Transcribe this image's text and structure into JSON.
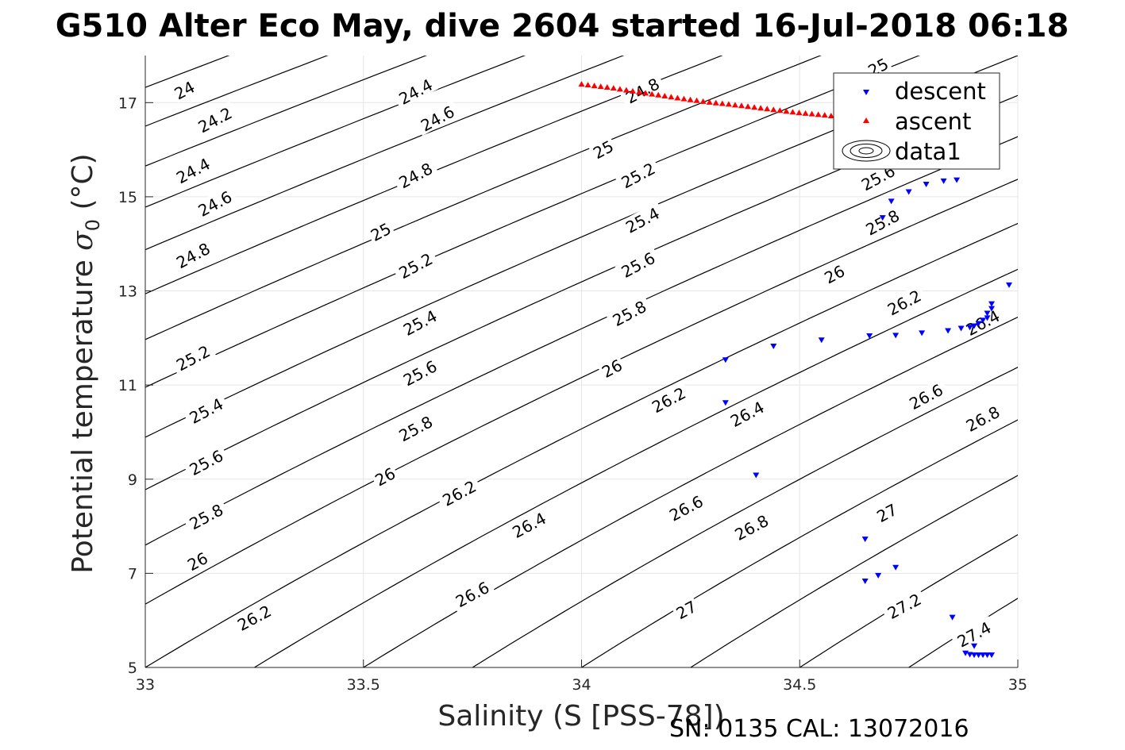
{
  "title": "G510 Alter Eco May, dive 2604 started 16-Jul-2018 06:18",
  "footer": "SN: 0135  CAL: 13072016",
  "chart_data": {
    "type": "scatter",
    "title": "G510 Alter Eco May, dive 2604 started 16-Jul-2018 06:18",
    "xlabel": "Salinity (S [PSS-78])",
    "ylabel": "Potential temperature σ₀ (°C)",
    "xlim": [
      33,
      35
    ],
    "ylim": [
      5,
      18
    ],
    "xticks": [
      33,
      33.5,
      34,
      34.5,
      35
    ],
    "xtick_labels": [
      "33",
      "33.5",
      "34",
      "34.5",
      "35"
    ],
    "yticks": [
      5,
      7,
      9,
      11,
      13,
      15,
      17
    ],
    "ytick_labels": [
      "5",
      "7",
      "9",
      "11",
      "13",
      "15",
      "17"
    ],
    "grid": true,
    "legend_position": "top-right",
    "series": [
      {
        "name": "descent",
        "marker": "triangle-down",
        "color": "#0000ff",
        "points": [
          [
            34.86,
            15.35
          ],
          [
            34.83,
            15.33
          ],
          [
            34.79,
            15.26
          ],
          [
            34.75,
            15.1
          ],
          [
            34.71,
            14.9
          ],
          [
            34.69,
            14.55
          ],
          [
            34.98,
            13.12
          ],
          [
            34.94,
            12.72
          ],
          [
            34.94,
            12.62
          ],
          [
            34.93,
            12.52
          ],
          [
            34.93,
            12.42
          ],
          [
            34.92,
            12.37
          ],
          [
            34.91,
            12.3
          ],
          [
            34.9,
            12.25
          ],
          [
            34.89,
            12.22
          ],
          [
            34.87,
            12.2
          ],
          [
            34.84,
            12.15
          ],
          [
            34.78,
            12.1
          ],
          [
            34.72,
            12.05
          ],
          [
            34.66,
            12.04
          ],
          [
            34.55,
            11.95
          ],
          [
            34.44,
            11.82
          ],
          [
            34.33,
            11.53
          ],
          [
            34.33,
            10.62
          ],
          [
            34.4,
            9.08
          ],
          [
            34.65,
            7.72
          ],
          [
            34.72,
            7.12
          ],
          [
            34.68,
            6.95
          ],
          [
            34.65,
            6.83
          ],
          [
            34.85,
            6.06
          ],
          [
            34.9,
            5.45
          ],
          [
            34.88,
            5.3
          ],
          [
            34.89,
            5.27
          ],
          [
            34.9,
            5.26
          ],
          [
            34.91,
            5.26
          ],
          [
            34.92,
            5.26
          ],
          [
            34.93,
            5.26
          ],
          [
            34.94,
            5.26
          ]
        ]
      },
      {
        "name": "ascent",
        "marker": "triangle-up",
        "color": "#ff0000",
        "points": [
          [
            34.0,
            17.4
          ],
          [
            34.07,
            17.32
          ],
          [
            34.14,
            17.22
          ],
          [
            34.21,
            17.12
          ],
          [
            34.28,
            17.03
          ],
          [
            34.35,
            16.96
          ],
          [
            34.42,
            16.88
          ],
          [
            34.49,
            16.8
          ],
          [
            34.56,
            16.74
          ],
          [
            34.63,
            16.66
          ],
          [
            34.7,
            16.6
          ],
          [
            34.77,
            16.54
          ],
          [
            34.84,
            16.5
          ],
          [
            34.88,
            16.47
          ]
        ]
      },
      {
        "name": "data1",
        "type": "contour",
        "description_levels": [
          24,
          24.2,
          24.4,
          24.6,
          24.8,
          25,
          25.2,
          25.4,
          25.6,
          25.8,
          26,
          26.2,
          26.4,
          26.6,
          26.8,
          27,
          27.2,
          27.4
        ]
      }
    ],
    "contour_labels": [
      {
        "text": "24",
        "x": 33.09,
        "y": 17.26
      },
      {
        "text": "24.2",
        "x": 33.16,
        "y": 16.63
      },
      {
        "text": "24.4",
        "x": 33.11,
        "y": 15.55
      },
      {
        "text": "24.6",
        "x": 33.16,
        "y": 14.85
      },
      {
        "text": "24.8",
        "x": 33.11,
        "y": 13.75
      },
      {
        "text": "25.2",
        "x": 33.11,
        "y": 11.57
      },
      {
        "text": "25.4",
        "x": 33.14,
        "y": 10.45
      },
      {
        "text": "25.6",
        "x": 33.14,
        "y": 9.35
      },
      {
        "text": "25.8",
        "x": 33.14,
        "y": 8.2
      },
      {
        "text": "26",
        "x": 33.12,
        "y": 7.25
      },
      {
        "text": "26.2",
        "x": 33.25,
        "y": 6.05
      },
      {
        "text": "24.4",
        "x": 33.62,
        "y": 17.23
      },
      {
        "text": "24.6",
        "x": 33.67,
        "y": 16.66
      },
      {
        "text": "24.8",
        "x": 33.62,
        "y": 15.45
      },
      {
        "text": "25",
        "x": 33.54,
        "y": 14.25
      },
      {
        "text": "25.2",
        "x": 33.62,
        "y": 13.53
      },
      {
        "text": "25.4",
        "x": 33.63,
        "y": 12.32
      },
      {
        "text": "25.6",
        "x": 33.63,
        "y": 11.25
      },
      {
        "text": "25.8",
        "x": 33.62,
        "y": 10.07
      },
      {
        "text": "26",
        "x": 33.55,
        "y": 9.05
      },
      {
        "text": "26.2",
        "x": 33.72,
        "y": 8.7
      },
      {
        "text": "26.4",
        "x": 33.88,
        "y": 8.02
      },
      {
        "text": "26.6",
        "x": 33.75,
        "y": 6.55
      },
      {
        "text": "24.8",
        "x": 34.14,
        "y": 17.25
      },
      {
        "text": "25",
        "x": 34.05,
        "y": 16.0
      },
      {
        "text": "25.2",
        "x": 34.13,
        "y": 15.45
      },
      {
        "text": "25.4",
        "x": 34.14,
        "y": 14.5
      },
      {
        "text": "25.6",
        "x": 34.13,
        "y": 13.55
      },
      {
        "text": "25.8",
        "x": 34.11,
        "y": 12.52
      },
      {
        "text": "26",
        "x": 34.07,
        "y": 11.35
      },
      {
        "text": "26.2",
        "x": 34.2,
        "y": 10.68
      },
      {
        "text": "26.4",
        "x": 34.38,
        "y": 10.38
      },
      {
        "text": "26.6",
        "x": 34.24,
        "y": 8.38
      },
      {
        "text": "26.8",
        "x": 34.39,
        "y": 7.97
      },
      {
        "text": "27",
        "x": 34.24,
        "y": 6.22
      },
      {
        "text": "25",
        "x": 34.68,
        "y": 17.75
      },
      {
        "text": "25.6",
        "x": 34.68,
        "y": 15.4
      },
      {
        "text": "25.8",
        "x": 34.69,
        "y": 14.45
      },
      {
        "text": "26",
        "x": 34.58,
        "y": 13.35
      },
      {
        "text": "26.2",
        "x": 34.74,
        "y": 12.75
      },
      {
        "text": "26.4",
        "x": 34.92,
        "y": 12.32
      },
      {
        "text": "26.6",
        "x": 34.79,
        "y": 10.75
      },
      {
        "text": "26.8",
        "x": 34.92,
        "y": 10.28
      },
      {
        "text": "27",
        "x": 34.7,
        "y": 8.28
      },
      {
        "text": "27.2",
        "x": 34.74,
        "y": 6.3
      },
      {
        "text": "27.4",
        "x": 34.9,
        "y": 5.7
      }
    ],
    "footer_text": "SN: 0135  CAL: 13072016"
  }
}
